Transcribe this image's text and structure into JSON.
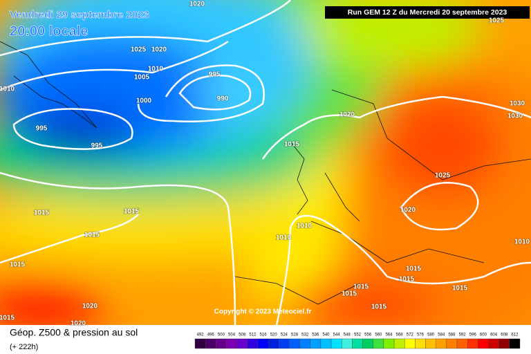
{
  "header": {
    "date": "Vendredi 29 septembre 2023",
    "time": "20:00 locale",
    "run": "Run GEM 12 Z du Mercredi 20 septembre 2023"
  },
  "copyright": "Copyright © 2023 Meteociel.fr",
  "isobar_labels": [
    "1020",
    "1025",
    "1020",
    "1010",
    "1005",
    "1000",
    "995",
    "990",
    "995",
    "995",
    "1010",
    "1015",
    "1020",
    "1030",
    "1030",
    "1025",
    "1020",
    "1015",
    "1015",
    "1015",
    "1010",
    "1010",
    "1015",
    "1015",
    "1015",
    "1015",
    "1015",
    "1015",
    "1020",
    "1020",
    "1015",
    "1015",
    "1025",
    "1010"
  ],
  "legend": {
    "title": "Géop. Z500 & pression au sol",
    "lead": "(+ 222h)",
    "scale": [
      492,
      496,
      500,
      504,
      508,
      512,
      516,
      520,
      524,
      528,
      532,
      536,
      540,
      544,
      548,
      552,
      556,
      560,
      564,
      568,
      572,
      576,
      580,
      584,
      588,
      592,
      596,
      600,
      604,
      608,
      612
    ],
    "colors": [
      "#300040",
      "#4a0066",
      "#66008c",
      "#7a00b0",
      "#6a00d0",
      "#3000e0",
      "#0000ff",
      "#0020e0",
      "#0040f0",
      "#0060ff",
      "#0080ff",
      "#00a0ff",
      "#00c0ff",
      "#00e0ff",
      "#40f0e0",
      "#00e0a0",
      "#00d060",
      "#40e040",
      "#80f000",
      "#c0f000",
      "#ffff00",
      "#ffe000",
      "#ffc000",
      "#ffa000",
      "#ff8000",
      "#ff6000",
      "#ff3000",
      "#ff0000",
      "#d00000",
      "#900000",
      "#000000"
    ]
  }
}
